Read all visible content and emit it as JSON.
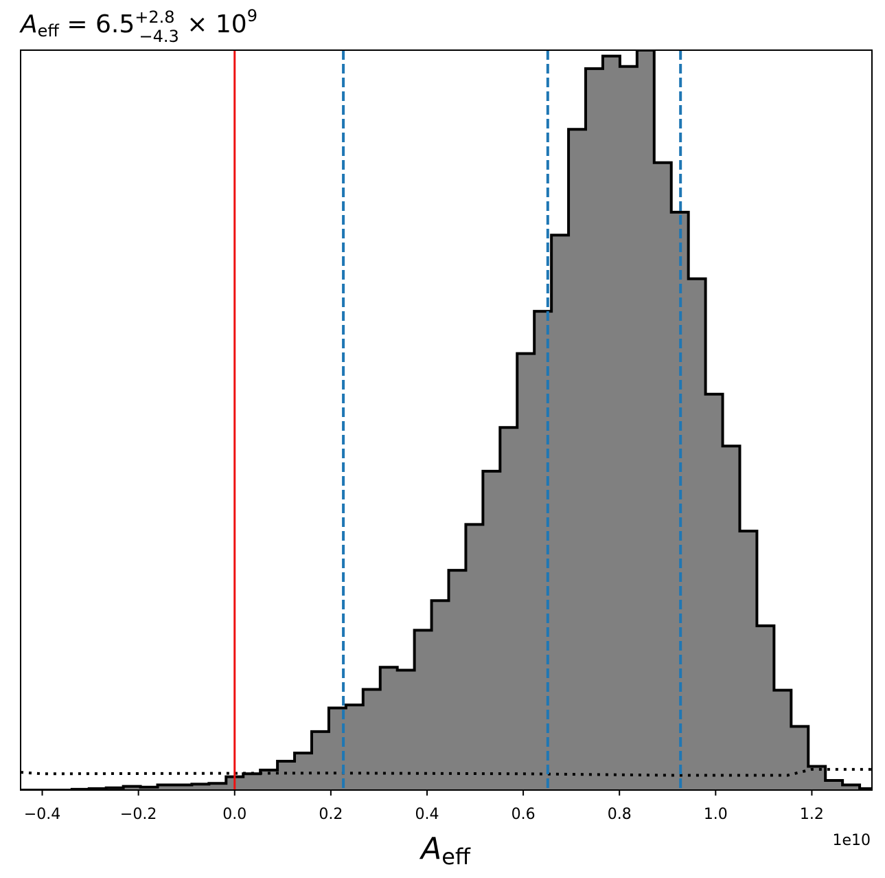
{
  "chart_data": {
    "type": "histogram",
    "title": {
      "base": "A",
      "base_sub": "eff",
      "eq": " = 6.5",
      "sup": "+2.8",
      "sub": "−4.3",
      "tail": " × 10",
      "exp": "9"
    },
    "xlabel": {
      "base": "A",
      "sub": "eff"
    },
    "x_offset_label": "1e10",
    "xlim": [
      -0.445,
      1.325
    ],
    "ylim": [
      0,
      1.0
    ],
    "x_ticks": [
      -0.4,
      -0.2,
      0.0,
      0.2,
      0.4,
      0.6,
      0.8,
      1.0,
      1.2
    ],
    "x_tick_labels": [
      "−0.4",
      "−0.2",
      "0.0",
      "0.2",
      "0.4",
      "0.6",
      "0.8",
      "1.0",
      "1.2"
    ],
    "y_ticks_shown": false,
    "bin_start": -0.445,
    "bin_width": 0.0356,
    "bin_values": [
      0.0,
      0.0,
      0.0,
      0.001,
      0.002,
      0.003,
      0.005,
      0.004,
      0.007,
      0.007,
      0.008,
      0.009,
      0.018,
      0.022,
      0.027,
      0.039,
      0.05,
      0.079,
      0.111,
      0.115,
      0.136,
      0.166,
      0.162,
      0.216,
      0.256,
      0.297,
      0.359,
      0.431,
      0.49,
      0.59,
      0.647,
      0.75,
      0.893,
      0.975,
      0.992,
      0.978,
      1.0,
      0.848,
      0.781,
      0.691,
      0.535,
      0.465,
      0.35,
      0.222,
      0.135,
      0.086,
      0.032,
      0.013,
      0.007,
      0.002
    ],
    "hist_fill_color": "#808080",
    "hist_edge_color": "#000000",
    "vertical_lines": [
      {
        "x": 0.0,
        "color": "#ee1111",
        "style": "solid"
      },
      {
        "x": 0.226,
        "color": "#1f77b4",
        "style": "dashed"
      },
      {
        "x": 0.651,
        "color": "#1f77b4",
        "style": "dashed"
      },
      {
        "x": 0.927,
        "color": "#1f77b4",
        "style": "dashed"
      }
    ],
    "prior_curve": {
      "color": "#000000",
      "style": "dotted",
      "points": [
        [
          -0.445,
          0.024
        ],
        [
          -0.4,
          0.022
        ],
        [
          0.2,
          0.023
        ],
        [
          0.6,
          0.022
        ],
        [
          0.9,
          0.02
        ],
        [
          1.15,
          0.02
        ],
        [
          1.2,
          0.028
        ],
        [
          1.325,
          0.028
        ]
      ]
    },
    "grid": false,
    "legend": "none"
  }
}
